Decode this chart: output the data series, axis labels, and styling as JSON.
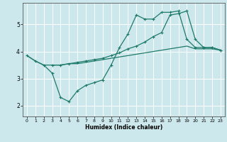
{
  "xlabel": "Humidex (Indice chaleur)",
  "background_color": "#cde8ec",
  "grid_color": "#ffffff",
  "line_color": "#1e7a6a",
  "xlim": [
    -0.5,
    23.5
  ],
  "ylim": [
    1.6,
    5.8
  ],
  "yticks": [
    2,
    3,
    4,
    5
  ],
  "xticks": [
    0,
    1,
    2,
    3,
    4,
    5,
    6,
    7,
    8,
    9,
    10,
    11,
    12,
    13,
    14,
    15,
    16,
    17,
    18,
    19,
    20,
    21,
    22,
    23
  ],
  "line1_x": [
    0,
    1,
    2,
    3,
    4,
    5,
    6,
    7,
    8,
    9,
    10,
    11,
    12,
    13,
    14,
    15,
    16,
    17,
    18,
    19,
    20,
    21,
    22,
    23
  ],
  "line1_y": [
    3.85,
    3.65,
    3.5,
    3.5,
    3.5,
    3.55,
    3.55,
    3.6,
    3.65,
    3.7,
    3.75,
    3.8,
    3.85,
    3.9,
    3.95,
    4.0,
    4.05,
    4.1,
    4.15,
    4.2,
    4.1,
    4.1,
    4.1,
    4.05
  ],
  "line2_x": [
    0,
    1,
    2,
    3,
    4,
    5,
    6,
    7,
    8,
    9,
    10,
    11,
    12,
    13,
    14,
    15,
    16,
    17,
    18,
    19,
    20,
    21,
    22,
    23
  ],
  "line2_y": [
    3.85,
    3.65,
    3.5,
    3.2,
    2.3,
    2.15,
    2.55,
    2.75,
    2.85,
    2.95,
    3.5,
    4.15,
    4.65,
    5.35,
    5.2,
    5.2,
    5.45,
    5.45,
    5.5,
    4.45,
    4.15,
    4.15,
    4.15,
    4.05
  ],
  "line3_x": [
    3,
    4,
    5,
    6,
    7,
    8,
    9,
    10,
    11,
    12,
    13,
    14,
    15,
    16,
    17,
    18,
    19,
    20,
    21,
    22,
    23
  ],
  "line3_y": [
    3.5,
    3.5,
    3.55,
    3.6,
    3.65,
    3.7,
    3.75,
    3.85,
    3.95,
    4.1,
    4.2,
    4.35,
    4.55,
    4.7,
    5.35,
    5.4,
    5.5,
    4.45,
    4.15,
    4.15,
    4.05
  ]
}
